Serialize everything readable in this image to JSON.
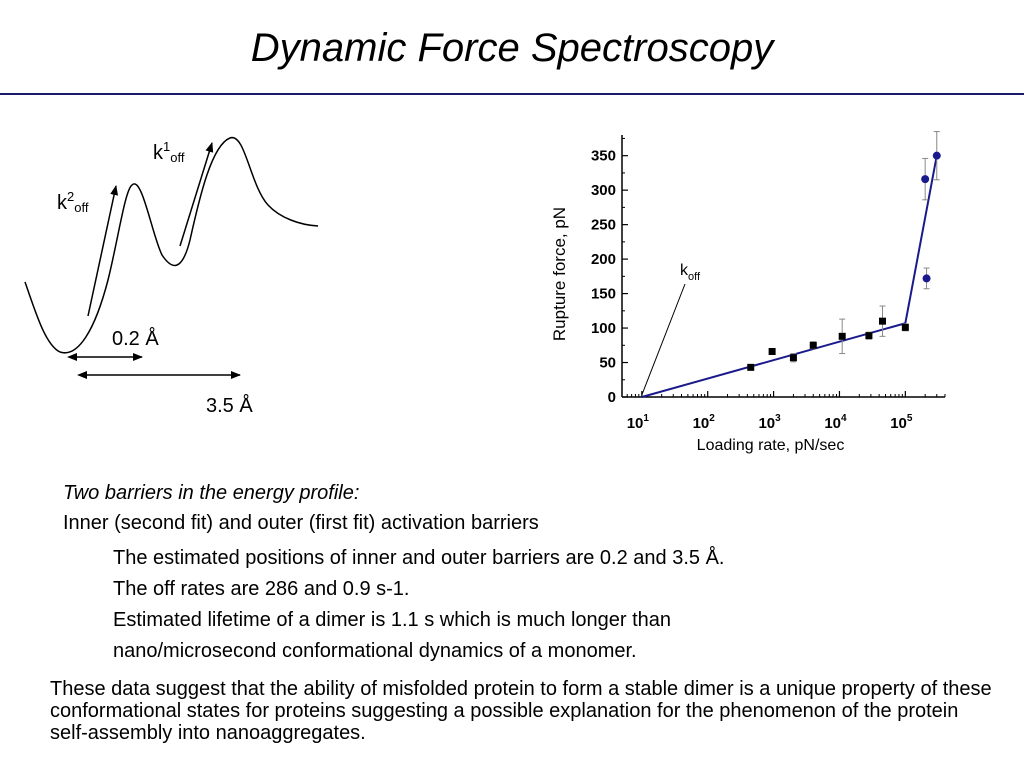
{
  "title": "Dynamic Force Spectroscopy",
  "energy_profile": {
    "k1_base": "k",
    "k1_sup": "1",
    "k1_sub": "off",
    "k2_base": "k",
    "k2_sup": "2",
    "k2_sub": "off",
    "distance_inner": "0.2 Å",
    "distance_outer": "3.5 Å"
  },
  "chart_data": {
    "type": "scatter",
    "xlabel": "Loading rate, pN/sec",
    "ylabel": "Rupture force, pN",
    "x_scale": "log",
    "xlim": [
      5,
      400000
    ],
    "ylim": [
      0,
      380
    ],
    "y_ticks": [
      0,
      50,
      100,
      150,
      200,
      250,
      300,
      350
    ],
    "x_ticks": [
      {
        "value": 10,
        "base": "10",
        "exp": "1"
      },
      {
        "value": 100,
        "base": "10",
        "exp": "2"
      },
      {
        "value": 1000,
        "base": "10",
        "exp": "3"
      },
      {
        "value": 10000,
        "base": "10",
        "exp": "4"
      },
      {
        "value": 100000,
        "base": "10",
        "exp": "5"
      }
    ],
    "annotation": {
      "base": "k",
      "sub": "off",
      "points_to_x": 10,
      "points_to_y": 0
    },
    "series": [
      {
        "marker": "square",
        "color": "#000000",
        "points": [
          {
            "x": 450,
            "y": 43,
            "err": 3
          },
          {
            "x": 950,
            "y": 66,
            "err": 3
          },
          {
            "x": 2000,
            "y": 57,
            "err": 6
          },
          {
            "x": 4000,
            "y": 75,
            "err": 5
          },
          {
            "x": 11000,
            "y": 88,
            "err": 25
          },
          {
            "x": 28000,
            "y": 89,
            "err": 5
          },
          {
            "x": 45000,
            "y": 110,
            "err": 22
          },
          {
            "x": 100000,
            "y": 101,
            "err": 5
          }
        ]
      },
      {
        "marker": "circle",
        "color": "#1a1a8c",
        "points": [
          {
            "x": 200000,
            "y": 316,
            "err": 30
          },
          {
            "x": 210000,
            "y": 172,
            "err": 15
          },
          {
            "x": 300000,
            "y": 350,
            "err": 35
          }
        ]
      }
    ],
    "fits": [
      {
        "color": "#1a1a8c",
        "points": [
          {
            "x": 10,
            "y": 0
          },
          {
            "x": 100000,
            "y": 107
          }
        ]
      },
      {
        "color": "#1a1a8c",
        "points": [
          {
            "x": 100000,
            "y": 107
          },
          {
            "x": 300000,
            "y": 350
          }
        ]
      }
    ]
  },
  "text": {
    "heading": "Two barriers in the energy profile:",
    "line1": "Inner (second fit) and outer (first fit) activation barriers",
    "bullets": [
      "The estimated positions of inner and outer barriers are 0.2 and 3.5 Å.",
      "The off rates are 286 and 0.9 s-1.",
      "Estimated lifetime of a dimer is 1.1 s which is much longer than",
      "nano/microsecond conformational dynamics of a monomer."
    ],
    "conclusion": "These data suggest that the ability of misfolded protein to form a stable dimer is a unique property of these conformational states for proteins suggesting a possible explanation for the phenomenon of the protein self-assembly into nanoaggregates."
  }
}
